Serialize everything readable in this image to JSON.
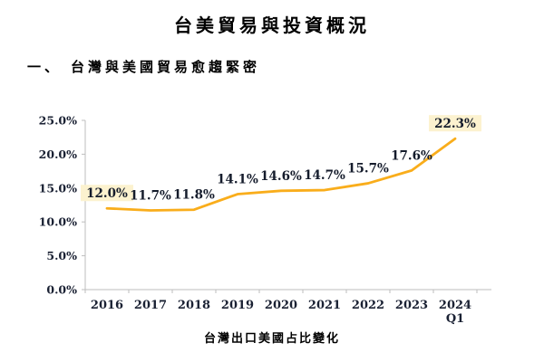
{
  "page": {
    "title": "台美貿易與投資概況",
    "section_heading_prefix": "一、",
    "section_heading": "台灣與美國貿易愈趨緊密",
    "caption": "台灣出口美國占比變化"
  },
  "chart_data": {
    "type": "line",
    "title": "",
    "xlabel": "",
    "ylabel": "",
    "categories": [
      "2016",
      "2017",
      "2018",
      "2019",
      "2020",
      "2021",
      "2022",
      "2023",
      "2024\nQ1"
    ],
    "values": [
      12.0,
      11.7,
      11.8,
      14.1,
      14.6,
      14.7,
      15.7,
      17.6,
      22.3
    ],
    "labels": [
      "12.0%",
      "11.7%",
      "11.8%",
      "14.1%",
      "14.6%",
      "14.7%",
      "15.7%",
      "17.6%",
      "22.3%"
    ],
    "highlighted_labels": [
      0,
      8
    ],
    "ylim": [
      0,
      25
    ],
    "ytick_step": 5,
    "ytick_labels": [
      "0.0%",
      "5.0%",
      "10.0%",
      "15.0%",
      "20.0%",
      "25.0%"
    ],
    "grid": false,
    "legend": "none",
    "line_color": "#F9AD1B",
    "axis_color": "#bdbdbd",
    "label_highlight_bg": "#FCF2CF",
    "caption": "台灣出口美國占比變化"
  }
}
